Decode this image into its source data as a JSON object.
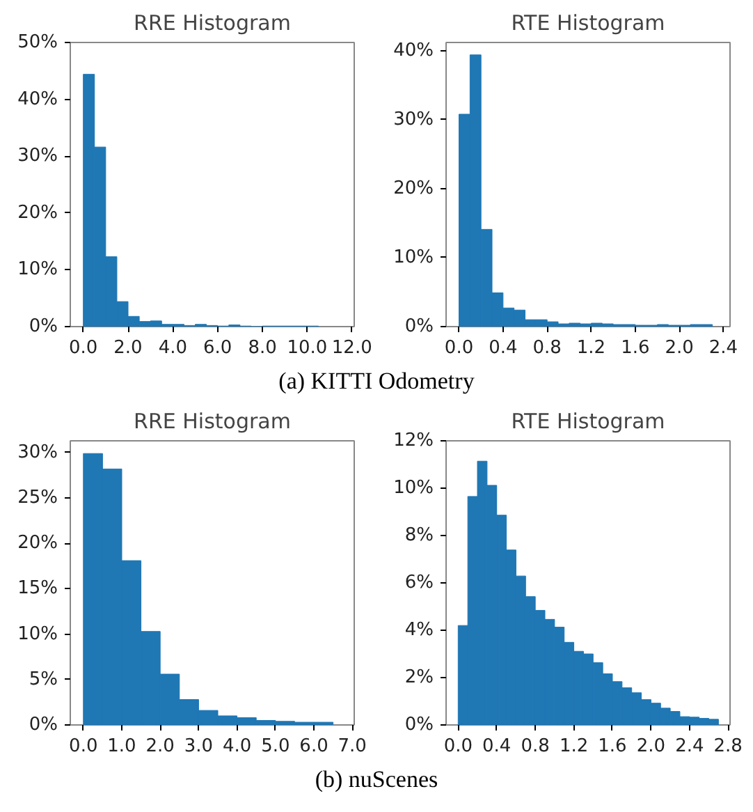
{
  "chart_data": [
    {
      "type": "histogram",
      "title": "RRE Histogram",
      "color": "#1f77b4",
      "bins": [
        0,
        0.5,
        1,
        1.5,
        2,
        2.5,
        3,
        3.5,
        4,
        4.5,
        5,
        5.5,
        6,
        6.5,
        7,
        7.5,
        8,
        8.5,
        9,
        9.5,
        10,
        10.5
      ],
      "values": [
        44.4,
        31.6,
        12.3,
        4.4,
        1.8,
        0.9,
        1.0,
        0.4,
        0.4,
        0.2,
        0.4,
        0.2,
        0.1,
        0.3,
        0.1,
        0,
        0.1,
        0.1,
        0.1,
        0.1,
        0.1
      ],
      "xlim": [
        -0.58,
        12.1
      ],
      "ylim": [
        0,
        50
      ],
      "xticks": [
        {
          "value": 0,
          "label": "0.0"
        },
        {
          "value": 2,
          "label": "2.0"
        },
        {
          "value": 4,
          "label": "4.0"
        },
        {
          "value": 6,
          "label": "6.0"
        },
        {
          "value": 8,
          "label": "8.0"
        },
        {
          "value": 10,
          "label": "10.0"
        },
        {
          "value": 12,
          "label": "12.0"
        }
      ],
      "yticks": [
        {
          "value": 0,
          "label": "0%"
        },
        {
          "value": 10,
          "label": "10%"
        },
        {
          "value": 20,
          "label": "20%"
        },
        {
          "value": 30,
          "label": "30%"
        },
        {
          "value": 40,
          "label": "40%"
        },
        {
          "value": 50,
          "label": "50%"
        }
      ],
      "annotations": [
        "(a) KITTI Odometry"
      ]
    },
    {
      "type": "histogram",
      "title": "RTE Histogram",
      "color": "#1f77b4",
      "bins": [
        0,
        0.1,
        0.2,
        0.3,
        0.4,
        0.5,
        0.6,
        0.7,
        0.8,
        0.9,
        1.0,
        1.1,
        1.2,
        1.3,
        1.4,
        1.5,
        1.6,
        1.7,
        1.8,
        1.9,
        2.0,
        2.1,
        2.2,
        2.3
      ],
      "values": [
        30.8,
        39.4,
        14.1,
        4.9,
        2.7,
        2.4,
        1.0,
        1.0,
        0.7,
        0.4,
        0.5,
        0.4,
        0.5,
        0.4,
        0.3,
        0.3,
        0.2,
        0.2,
        0.3,
        0.2,
        0.2,
        0.3,
        0.3
      ],
      "xlim": [
        -0.117,
        2.46
      ],
      "ylim": [
        0,
        41.2
      ],
      "xticks": [
        {
          "value": 0,
          "label": "0.0"
        },
        {
          "value": 0.4,
          "label": "0.4"
        },
        {
          "value": 0.8,
          "label": "0.8"
        },
        {
          "value": 1.2,
          "label": "1.2"
        },
        {
          "value": 1.6,
          "label": "1.6"
        },
        {
          "value": 2.0,
          "label": "2.0"
        },
        {
          "value": 2.4,
          "label": "2.4"
        }
      ],
      "yticks": [
        {
          "value": 0,
          "label": "0%"
        },
        {
          "value": 10,
          "label": "10%"
        },
        {
          "value": 20,
          "label": "20%"
        },
        {
          "value": 30,
          "label": "30%"
        },
        {
          "value": 40,
          "label": "40%"
        }
      ]
    },
    {
      "type": "histogram",
      "title": "RRE Histogram",
      "color": "#1f77b4",
      "bins": [
        0,
        0.5,
        1,
        1.5,
        2,
        2.5,
        3,
        3.5,
        4,
        4.5,
        5,
        5.5,
        6,
        6.5
      ],
      "values": [
        29.9,
        28.2,
        18.1,
        10.3,
        5.6,
        2.8,
        1.6,
        1.0,
        0.8,
        0.5,
        0.4,
        0.3,
        0.3
      ],
      "xlim": [
        -0.34,
        7.05
      ],
      "ylim": [
        0,
        31.3
      ],
      "xticks": [
        {
          "value": 0,
          "label": "0.0"
        },
        {
          "value": 1,
          "label": "1.0"
        },
        {
          "value": 2,
          "label": "2.0"
        },
        {
          "value": 3,
          "label": "3.0"
        },
        {
          "value": 4,
          "label": "4.0"
        },
        {
          "value": 5,
          "label": "5.0"
        },
        {
          "value": 6,
          "label": "6.0"
        },
        {
          "value": 7,
          "label": "7.0"
        }
      ],
      "yticks": [
        {
          "value": 0,
          "label": "0%"
        },
        {
          "value": 5,
          "label": "5%"
        },
        {
          "value": 10,
          "label": "10%"
        },
        {
          "value": 15,
          "label": "15%"
        },
        {
          "value": 20,
          "label": "20%"
        },
        {
          "value": 25,
          "label": "25%"
        },
        {
          "value": 30,
          "label": "30%"
        }
      ],
      "annotations": [
        "(b) nuScenes"
      ]
    },
    {
      "type": "histogram",
      "title": "RTE Histogram",
      "color": "#1f77b4",
      "bins": [
        0,
        0.1,
        0.2,
        0.3,
        0.4,
        0.5,
        0.6,
        0.7,
        0.8,
        0.9,
        1.0,
        1.1,
        1.2,
        1.3,
        1.4,
        1.5,
        1.6,
        1.7,
        1.8,
        1.9,
        2.0,
        2.1,
        2.2,
        2.3,
        2.4,
        2.5,
        2.6,
        2.7
      ],
      "values": [
        4.2,
        9.65,
        11.14,
        10.12,
        8.86,
        7.39,
        6.29,
        5.42,
        4.84,
        4.46,
        4.13,
        3.49,
        3.11,
        3.0,
        2.63,
        2.16,
        1.83,
        1.57,
        1.36,
        1.07,
        0.92,
        0.71,
        0.57,
        0.35,
        0.33,
        0.28,
        0.24
      ],
      "xlim": [
        -0.125,
        2.82
      ],
      "ylim": [
        0,
        12
      ],
      "xticks": [
        {
          "value": 0,
          "label": "0.0"
        },
        {
          "value": 0.4,
          "label": "0.4"
        },
        {
          "value": 0.8,
          "label": "0.8"
        },
        {
          "value": 1.2,
          "label": "1.2"
        },
        {
          "value": 1.6,
          "label": "1.6"
        },
        {
          "value": 2.0,
          "label": "2.0"
        },
        {
          "value": 2.4,
          "label": "2.4"
        },
        {
          "value": 2.8,
          "label": "2.8"
        }
      ],
      "yticks": [
        {
          "value": 0,
          "label": "0%"
        },
        {
          "value": 2,
          "label": "2%"
        },
        {
          "value": 4,
          "label": "4%"
        },
        {
          "value": 6,
          "label": "6%"
        },
        {
          "value": 8,
          "label": "8%"
        },
        {
          "value": 10,
          "label": "10%"
        },
        {
          "value": 12,
          "label": "12%"
        }
      ]
    }
  ]
}
